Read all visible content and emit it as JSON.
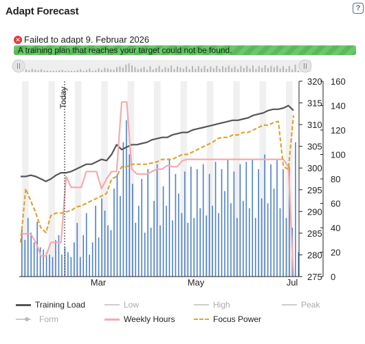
{
  "dialog": {
    "title": "Adapt Forecast",
    "help_label": "?"
  },
  "status": {
    "error_text": "Failed to adapt 9. Februar 2026",
    "banner_text": "A training plan that reaches your target could not be found."
  },
  "colors": {
    "training_load": "#555555",
    "weekly_hours": "#f6a9ad",
    "focus_power": "#e0a233",
    "bars": "#4a7fc9",
    "banner": "#6cc76c",
    "error": "#e13b3b",
    "inactive": "#bbbbbb"
  },
  "chart_data": {
    "type": "line",
    "today_label": "Today",
    "xlabels": [
      "Mar",
      "May",
      "Jul"
    ],
    "y_left_ticks": [
      "0",
      "20",
      "40",
      "60",
      "80",
      "100",
      "120",
      "140",
      "160"
    ],
    "y_right_ticks": [
      "275",
      "280",
      "285",
      "290",
      "295",
      "300",
      "305",
      "310",
      "315",
      "320"
    ],
    "y_left_range": [
      0,
      160
    ],
    "y_right_range": [
      275,
      320
    ],
    "series": [
      {
        "name": "Training Load",
        "axis": "left",
        "values": [
          82,
          82,
          83,
          82,
          80,
          78,
          80,
          83,
          85,
          85,
          86,
          88,
          90,
          92,
          92,
          94,
          96,
          95,
          100,
          108,
          104,
          106,
          108,
          108,
          109,
          110,
          112,
          113,
          114,
          114,
          116,
          117,
          118,
          118,
          120,
          121,
          122,
          123,
          124,
          125,
          126,
          127,
          128,
          128,
          129,
          130,
          132,
          133,
          134,
          136,
          137,
          137,
          138,
          140,
          136
        ]
      },
      {
        "name": "Weekly Hours",
        "axis": "left",
        "values": [
          35,
          35,
          35,
          28,
          17,
          17,
          28,
          28,
          28,
          82,
          73,
          73,
          73,
          86,
          86,
          86,
          72,
          80,
          86,
          86,
          143,
          143,
          88,
          84,
          84,
          84,
          86,
          88,
          88,
          91,
          90,
          90,
          95,
          96,
          96,
          96,
          96,
          96,
          96,
          96,
          96,
          96,
          96,
          96,
          96,
          96,
          96,
          96,
          96,
          96,
          96,
          96,
          96,
          90,
          0
        ]
      },
      {
        "name": "Focus Power",
        "axis": "left",
        "values": [
          28,
          72,
          62,
          52,
          40,
          36,
          50,
          52,
          52,
          53,
          54,
          57,
          58,
          60,
          62,
          64,
          66,
          68,
          80,
          82,
          90,
          90,
          92,
          92,
          92,
          92,
          93,
          94,
          96,
          96,
          96,
          98,
          100,
          100,
          102,
          104,
          106,
          108,
          110,
          113,
          114,
          114,
          116,
          116,
          118,
          118,
          120,
          122,
          124,
          124,
          126,
          127,
          90,
          88,
          132
        ]
      }
    ],
    "bars": {
      "name": "Daily Training",
      "values": [
        40,
        30,
        48,
        36,
        28,
        45,
        24,
        22,
        20,
        18,
        16,
        30,
        34,
        18,
        24,
        20,
        16,
        28,
        44,
        16,
        34,
        52,
        18,
        28,
        58,
        32,
        64,
        54,
        42,
        38,
        72,
        84,
        66,
        110,
        128,
        100,
        76,
        44,
        58,
        80,
        36,
        88,
        40,
        62,
        92,
        42,
        74,
        58,
        96,
        46,
        84,
        68,
        52,
        86,
        44,
        90,
        48,
        88,
        56,
        92,
        50,
        84,
        58,
        94,
        52,
        88,
        70,
        96,
        60,
        86,
        48,
        92,
        62,
        94,
        56,
        96,
        48,
        88,
        64,
        100,
        60,
        92,
        72,
        96,
        56,
        88,
        48,
        90,
        40,
        110,
        20
      ]
    },
    "legend": [
      "Training Load",
      "Low",
      "High",
      "Peak",
      "Form",
      "Weekly Hours",
      "Focus Power"
    ]
  },
  "legend_items": {
    "training_load": "Training Load",
    "low": "Low",
    "high": "High",
    "peak": "Peak",
    "form": "Form",
    "weekly_hours": "Weekly Hours",
    "focus_power": "Focus Power"
  }
}
